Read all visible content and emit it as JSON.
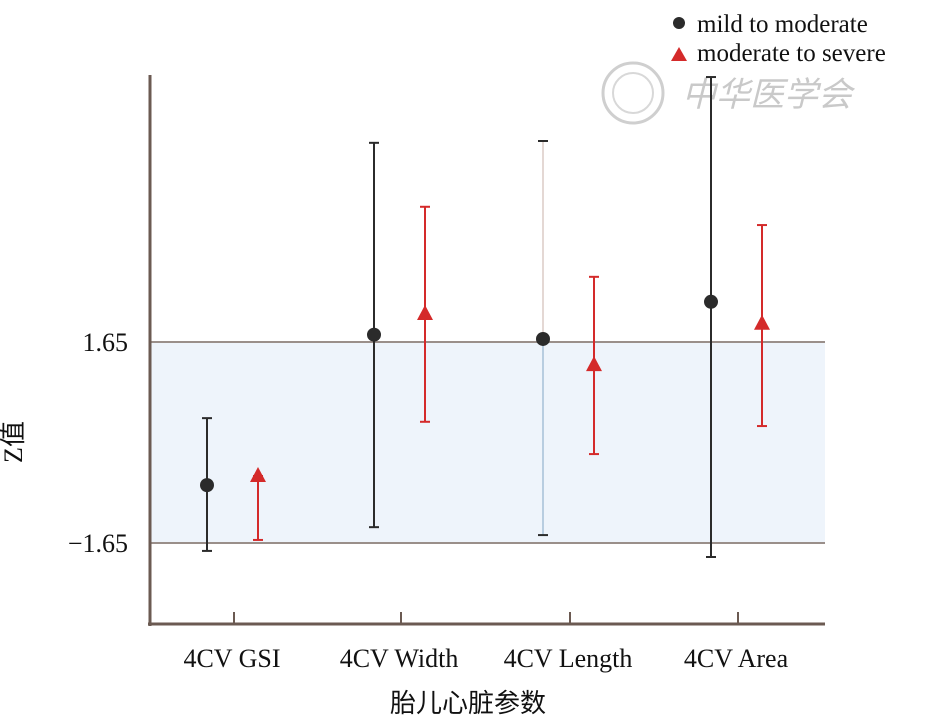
{
  "chart_data": {
    "type": "scatter",
    "subtype": "point-with-error-bars",
    "title": "",
    "xlabel": "胎儿心脏参数",
    "ylabel": "Z值",
    "categories": [
      "4CV GSI",
      "4CV Width",
      "4CV Length",
      "4CV Area"
    ],
    "yticks": [
      1.65,
      -1.65
    ],
    "ytick_labels": [
      "1.65",
      "−1.65"
    ],
    "ylim": [
      -3.0,
      6.0
    ],
    "reference_band": [
      -1.65,
      1.65
    ],
    "legend_position": "top-right",
    "series": [
      {
        "name": "mild to moderate",
        "marker": "circle",
        "color": "#2b2b2b",
        "values": [
          -0.7,
          1.77,
          1.7,
          2.31
        ],
        "lower": [
          -1.78,
          -1.39,
          -1.52,
          -1.88
        ],
        "upper": [
          0.4,
          4.92,
          4.95,
          6.0
        ]
      },
      {
        "name": "moderate to severe",
        "marker": "triangle",
        "color": "#d42a2a",
        "values": [
          -0.55,
          2.11,
          1.27,
          1.95
        ],
        "lower": [
          -1.6,
          0.34,
          -0.19,
          0.27
        ],
        "upper": [
          -0.55,
          3.87,
          2.72,
          3.57
        ]
      }
    ]
  },
  "colors": {
    "band": "#eef4fb",
    "axis": "#6b5a52",
    "refline": "#9a8f8a"
  },
  "watermark": {
    "text": "中华医学会"
  }
}
